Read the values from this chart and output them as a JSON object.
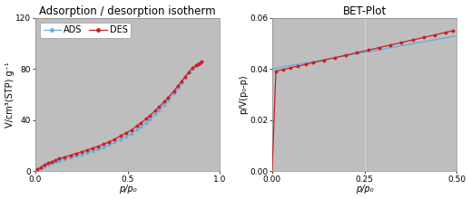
{
  "left_title": "Adsorption / desorption isotherm",
  "right_title": "BET-Plot",
  "left_xlabel": "p/p₀",
  "left_ylabel": "V/cm³(STP) g⁻¹",
  "right_xlabel": "p/p₀",
  "right_ylabel": "p/V(p₀-p)",
  "left_ylim": [
    0,
    120
  ],
  "left_xlim": [
    0,
    1.0
  ],
  "right_ylim": [
    0,
    0.06
  ],
  "right_xlim": [
    0,
    0.5
  ],
  "left_xticks": [
    0,
    0.5,
    1
  ],
  "left_yticks": [
    0,
    40,
    80,
    120
  ],
  "right_xticks": [
    0,
    0.25,
    0.5
  ],
  "right_yticks": [
    0,
    0.02,
    0.04,
    0.06
  ],
  "ads_color": "#6baed6",
  "des_color": "#cb2026",
  "bet_line_color": "#6baed6",
  "bet_data_color": "#cb2026",
  "bg_color": "#bebebe",
  "title_fontsize": 8.5,
  "label_fontsize": 7,
  "tick_fontsize": 6.5
}
